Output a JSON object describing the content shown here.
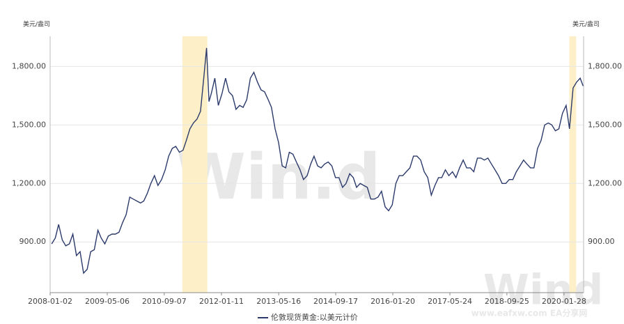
{
  "chart_data": {
    "type": "line",
    "y_unit_left": "美元/盎司",
    "y_unit_right": "美元/盎司",
    "watermarks": [
      "Win.d",
      "Wind",
      "www.eafxw.com  EA分享网"
    ],
    "xlim": [
      "2008-01-02",
      "2020-07-14"
    ],
    "xticks": [
      "2008-01-02",
      "2009-05-06",
      "2010-09-07",
      "2012-01-11",
      "2013-05-16",
      "2014-09-17",
      "2016-01-20",
      "2017-05-24",
      "2018-09-25",
      "2020-01-28"
    ],
    "ylim": [
      640,
      1955
    ],
    "yticks": [
      {
        "value": 900,
        "label": "900.00"
      },
      {
        "value": 1200,
        "label": "1,200.00"
      },
      {
        "value": 1500,
        "label": "1,500.00"
      },
      {
        "value": 1800,
        "label": "1,800.00"
      }
    ],
    "grid": true,
    "highlights": [
      {
        "start": "2011-02-09",
        "end": "2011-09-12",
        "color": "#fdf0c9"
      },
      {
        "start": "2020-03-13",
        "end": "2020-05-11",
        "color": "#fdf0c9"
      }
    ],
    "x": [
      "2008-01-15",
      "2008-02-15",
      "2008-03-15",
      "2008-04-15",
      "2008-05-15",
      "2008-06-15",
      "2008-07-15",
      "2008-08-15",
      "2008-09-15",
      "2008-10-15",
      "2008-11-15",
      "2008-12-15",
      "2009-01-15",
      "2009-02-15",
      "2009-03-15",
      "2009-04-15",
      "2009-05-15",
      "2009-06-15",
      "2009-07-15",
      "2009-08-15",
      "2009-09-15",
      "2009-10-15",
      "2009-11-15",
      "2009-12-15",
      "2010-01-15",
      "2010-02-15",
      "2010-03-15",
      "2010-04-15",
      "2010-05-15",
      "2010-06-15",
      "2010-07-15",
      "2010-08-15",
      "2010-09-15",
      "2010-10-15",
      "2010-11-15",
      "2010-12-15",
      "2011-01-15",
      "2011-02-15",
      "2011-03-15",
      "2011-04-15",
      "2011-05-15",
      "2011-06-15",
      "2011-07-15",
      "2011-08-15",
      "2011-09-05",
      "2011-09-26",
      "2011-10-15",
      "2011-11-15",
      "2011-12-15",
      "2012-01-15",
      "2012-02-15",
      "2012-03-15",
      "2012-04-15",
      "2012-05-15",
      "2012-06-15",
      "2012-07-15",
      "2012-08-15",
      "2012-09-15",
      "2012-10-15",
      "2012-11-15",
      "2012-12-15",
      "2013-01-15",
      "2013-02-15",
      "2013-03-15",
      "2013-04-15",
      "2013-05-15",
      "2013-06-15",
      "2013-07-15",
      "2013-08-15",
      "2013-09-15",
      "2013-10-15",
      "2013-11-15",
      "2013-12-15",
      "2014-01-15",
      "2014-02-15",
      "2014-03-15",
      "2014-04-15",
      "2014-05-15",
      "2014-06-15",
      "2014-07-15",
      "2014-08-15",
      "2014-09-15",
      "2014-10-15",
      "2014-11-15",
      "2014-12-15",
      "2015-01-15",
      "2015-02-15",
      "2015-03-15",
      "2015-04-15",
      "2015-05-15",
      "2015-06-15",
      "2015-07-15",
      "2015-08-15",
      "2015-09-15",
      "2015-10-15",
      "2015-11-15",
      "2015-12-15",
      "2016-01-15",
      "2016-02-15",
      "2016-03-15",
      "2016-04-15",
      "2016-05-15",
      "2016-06-15",
      "2016-07-15",
      "2016-08-15",
      "2016-09-15",
      "2016-10-15",
      "2016-11-15",
      "2016-12-15",
      "2017-01-15",
      "2017-02-15",
      "2017-03-15",
      "2017-04-15",
      "2017-05-15",
      "2017-06-15",
      "2017-07-15",
      "2017-08-15",
      "2017-09-15",
      "2017-10-15",
      "2017-11-15",
      "2017-12-15",
      "2018-01-15",
      "2018-02-15",
      "2018-03-15",
      "2018-04-15",
      "2018-05-15",
      "2018-06-15",
      "2018-07-15",
      "2018-08-15",
      "2018-09-15",
      "2018-10-15",
      "2018-11-15",
      "2018-12-15",
      "2019-01-15",
      "2019-02-15",
      "2019-03-15",
      "2019-04-15",
      "2019-05-15",
      "2019-06-15",
      "2019-07-15",
      "2019-08-15",
      "2019-09-15",
      "2019-10-15",
      "2019-11-15",
      "2019-12-15",
      "2020-01-15",
      "2020-02-15",
      "2020-03-15",
      "2020-04-15",
      "2020-05-15",
      "2020-06-15",
      "2020-07-10"
    ],
    "series": [
      {
        "name": "伦敦现货黄金:以美元计价",
        "color": "#2b3a6b",
        "values": [
          890,
          920,
          990,
          910,
          880,
          890,
          940,
          830,
          850,
          740,
          760,
          850,
          860,
          960,
          920,
          890,
          930,
          940,
          940,
          950,
          1000,
          1040,
          1130,
          1120,
          1110,
          1100,
          1110,
          1150,
          1200,
          1240,
          1190,
          1220,
          1270,
          1340,
          1380,
          1390,
          1360,
          1370,
          1420,
          1480,
          1510,
          1530,
          1570,
          1760,
          1895,
          1620,
          1660,
          1740,
          1600,
          1660,
          1740,
          1670,
          1650,
          1580,
          1600,
          1590,
          1630,
          1740,
          1770,
          1720,
          1680,
          1670,
          1630,
          1590,
          1480,
          1410,
          1290,
          1280,
          1360,
          1350,
          1310,
          1270,
          1220,
          1240,
          1300,
          1340,
          1290,
          1280,
          1300,
          1310,
          1290,
          1230,
          1230,
          1180,
          1200,
          1250,
          1230,
          1180,
          1200,
          1190,
          1180,
          1120,
          1120,
          1130,
          1160,
          1080,
          1060,
          1090,
          1200,
          1240,
          1240,
          1260,
          1280,
          1340,
          1340,
          1320,
          1260,
          1230,
          1140,
          1190,
          1230,
          1230,
          1270,
          1240,
          1260,
          1230,
          1280,
          1320,
          1280,
          1280,
          1260,
          1330,
          1330,
          1320,
          1330,
          1300,
          1270,
          1240,
          1200,
          1200,
          1220,
          1220,
          1260,
          1290,
          1320,
          1300,
          1280,
          1280,
          1380,
          1420,
          1500,
          1510,
          1500,
          1470,
          1480,
          1560,
          1600,
          1480,
          1690,
          1720,
          1740,
          1700
        ]
      }
    ]
  }
}
